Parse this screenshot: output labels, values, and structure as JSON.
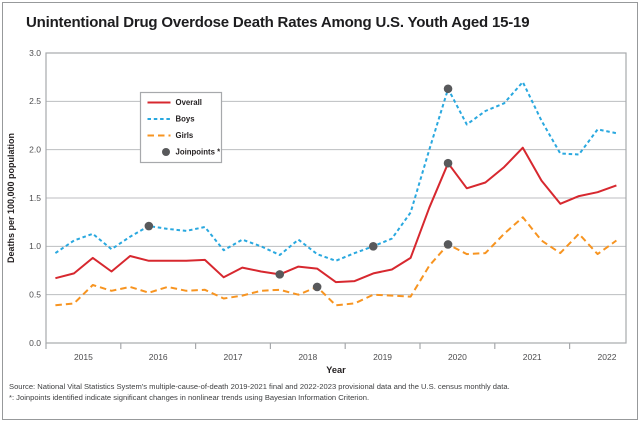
{
  "title": "Unintentional Drug Overdose Death Rates Among U.S. Youth Aged 15-19",
  "footer": {
    "source_line": "Source:  National Vital Statistics System's multiple-cause-of-death 2019-2021 final and 2022-2023 provisional data and the U.S. census monthly data.",
    "footnote_line": "*: Joinpoints identified indicate significant changes in nonlinear trends using Bayesian Information Criterion."
  },
  "chart_data": {
    "type": "line",
    "title": "Unintentional Drug Overdose Death Rates Among U.S. Youth Aged 15-19",
    "xlabel": "Year",
    "ylabel": "Deaths per 100,000 population",
    "ylim": [
      0,
      3.0
    ],
    "ytick_labels": [
      "0.0",
      "0.5",
      "1.0",
      "1.5",
      "2.0",
      "2.5",
      "3.0"
    ],
    "xtick_year_labels": [
      "2015",
      "2016",
      "2017",
      "2018",
      "2019",
      "2020",
      "2021",
      "2022"
    ],
    "x_resolution": "quarterly",
    "x_start": "2015 Q1",
    "x_end": "2022 Q3",
    "grid": "horizontal",
    "legend_position": "upper-left",
    "legend_items": [
      "Overall",
      "Boys",
      "Girls",
      "Joinpoints *"
    ],
    "colors": {
      "overall": "#d7282f",
      "boys": "#29a8df",
      "girls": "#f79420",
      "joinpoint": "#58595b",
      "grid": "#bcbec0",
      "frame": "#a7a9ac",
      "axis_text": "#4d4d4f",
      "legend_border": "#a7a9ac",
      "text": "#231f20"
    },
    "series": [
      {
        "name": "Overall",
        "style": "solid",
        "color_key": "overall",
        "values": [
          0.67,
          0.72,
          0.88,
          0.74,
          0.9,
          0.85,
          0.85,
          0.85,
          0.86,
          0.68,
          0.78,
          0.74,
          0.71,
          0.79,
          0.77,
          0.63,
          0.64,
          0.72,
          0.76,
          0.88,
          1.4,
          1.86,
          1.6,
          1.66,
          1.82,
          2.02,
          1.68,
          1.44,
          1.52,
          1.56,
          1.63
        ]
      },
      {
        "name": "Boys",
        "style": "dashed-short",
        "color_key": "boys",
        "values": [
          0.93,
          1.06,
          1.13,
          0.97,
          1.1,
          1.21,
          1.18,
          1.16,
          1.2,
          0.96,
          1.07,
          1.0,
          0.91,
          1.07,
          0.92,
          0.85,
          0.93,
          1.0,
          1.08,
          1.35,
          2.0,
          2.63,
          2.26,
          2.4,
          2.48,
          2.7,
          2.3,
          1.96,
          1.95,
          2.21,
          2.17
        ]
      },
      {
        "name": "Girls",
        "style": "dashed-long",
        "color_key": "girls",
        "values": [
          0.39,
          0.41,
          0.6,
          0.54,
          0.58,
          0.52,
          0.58,
          0.54,
          0.55,
          0.46,
          0.49,
          0.54,
          0.55,
          0.5,
          0.58,
          0.39,
          0.41,
          0.5,
          0.49,
          0.48,
          0.8,
          1.02,
          0.92,
          0.93,
          1.13,
          1.3,
          1.06,
          0.93,
          1.13,
          0.92,
          1.06
        ]
      }
    ],
    "joinpoints": [
      {
        "series": "Boys",
        "x_index": 5,
        "x_label": "2016 Q2",
        "value": 1.21
      },
      {
        "series": "Overall",
        "x_index": 12,
        "x_label": "2018 Q1",
        "value": 0.71
      },
      {
        "series": "Girls",
        "x_index": 14,
        "x_label": "2018 Q3",
        "value": 0.58
      },
      {
        "series": "Boys",
        "x_index": 17,
        "x_label": "2019 Q2",
        "value": 1.0
      },
      {
        "series": "Boys",
        "x_index": 21,
        "x_label": "2020 Q2",
        "value": 2.63
      },
      {
        "series": "Overall",
        "x_index": 21,
        "x_label": "2020 Q2",
        "value": 1.86
      },
      {
        "series": "Girls",
        "x_index": 21,
        "x_label": "2020 Q2",
        "value": 1.02
      }
    ]
  }
}
